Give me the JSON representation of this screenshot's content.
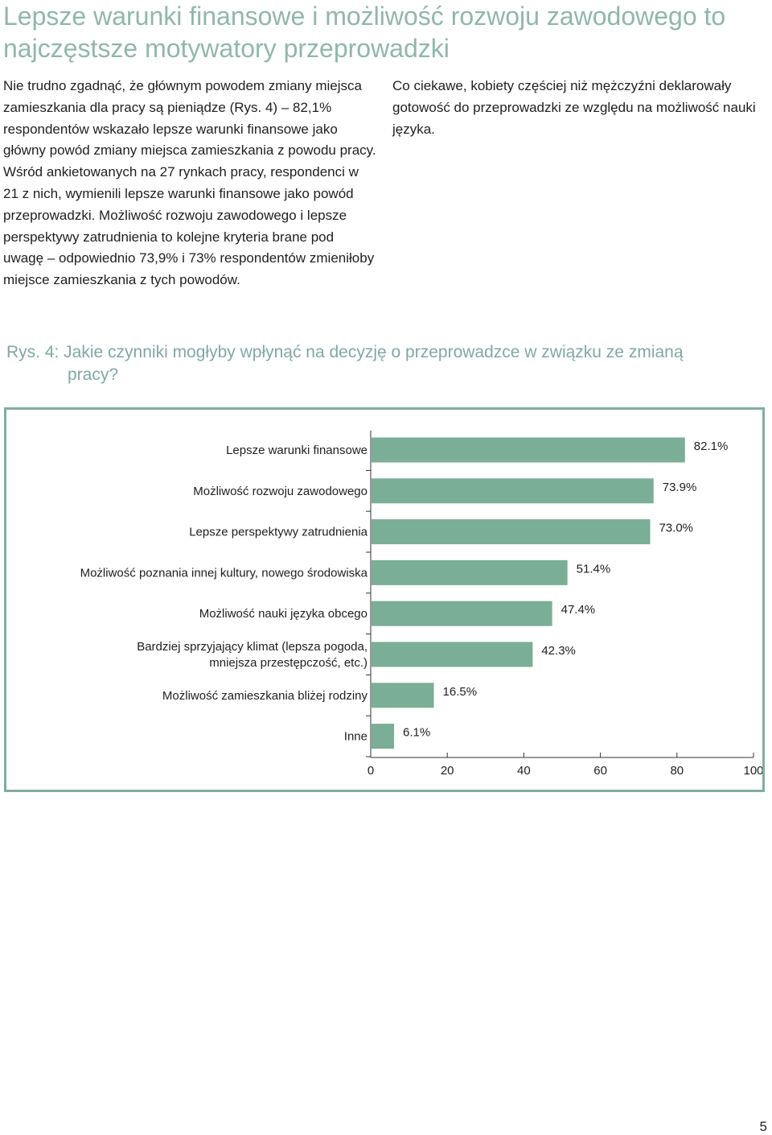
{
  "title": "Lepsze warunki finansowe i możliwość rozwoju zawodowego to najczęstsze motywatory przeprowadzki",
  "body_left": "Nie trudno zgadnąć, że głównym powodem zmiany miejsca zamieszkania dla pracy są pieniądze (Rys. 4) – 82,1% respondentów wskazało lepsze warunki finansowe jako główny powód zmiany miejsca zamieszkania z powodu pracy. Wśród ankietowanych na 27 rynkach pracy, respondenci w 21 z nich, wymienili lepsze warunki finansowe jako powód przeprowadzki. Możliwość rozwoju zawodowego i lepsze perspektywy zatrudnienia to kolejne kryteria brane pod uwagę – odpowiednio 73,9% i 73% respondentów zmieniłoby miejsce zamieszkania z tych powodów.",
  "body_right": "Co ciekawe, kobiety częściej niż mężczyźni deklarowały gotowość do przeprowadzki ze względu na możliwość nauki języka.",
  "figure_caption": "Rys. 4: Jakie czynniki mogłyby wpłynąć na decyzję o przeprowadzce w związku ze zmianą pracy?",
  "page_number": "5",
  "colors": {
    "bar": "#7aae97",
    "frame": "#80b09c",
    "title": "#8fb8a8",
    "caption": "#7fa8a6"
  },
  "chart_data": {
    "type": "bar",
    "orientation": "horizontal",
    "categories": [
      [
        "Lepsze warunki finansowe"
      ],
      [
        "Możliwość rozwoju zawodowego"
      ],
      [
        "Lepsze perspektywy zatrudnienia"
      ],
      [
        "Możliwość poznania innej kultury, nowego środowiska"
      ],
      [
        "Możliwość nauki języka obcego"
      ],
      [
        "Bardziej sprzyjający klimat (lepsza pogoda,",
        "mniejsza przestępczość, etc.)"
      ],
      [
        "Możliwość zamieszkania bliżej rodziny"
      ],
      [
        "Inne"
      ]
    ],
    "values": [
      82.1,
      73.9,
      73.0,
      51.4,
      47.4,
      42.3,
      16.5,
      6.1
    ],
    "value_labels": [
      "82.1%",
      "73.9%",
      "73.0%",
      "51.4%",
      "47.4%",
      "42.3%",
      "16.5%",
      "6.1%"
    ],
    "xlim": [
      0,
      100
    ],
    "xticks": [
      0,
      20,
      40,
      60,
      80,
      100
    ],
    "grid": false
  }
}
